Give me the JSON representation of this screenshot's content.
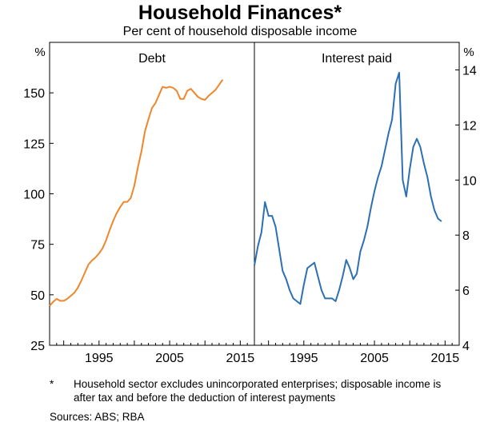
{
  "title": "Household Finances*",
  "subtitle": "Per cent of household disposable income",
  "footnote_marker": "*",
  "footnote": "Household sector excludes unincorporated enterprises; disposable income is after tax and before the deduction of interest payments",
  "sources": "Sources:  ABS; RBA",
  "colors": {
    "debt": "#f0862a",
    "interest": "#2c6fb3",
    "axis": "#000000"
  },
  "chart_data": [
    {
      "type": "line",
      "panel_title": "Debt",
      "ylabel": "%",
      "y_axis_side": "left",
      "ylim": [
        25,
        175
      ],
      "yticks": [
        25,
        50,
        75,
        100,
        125,
        150
      ],
      "xlim": [
        1988,
        2017
      ],
      "xticks": [
        1995,
        2005,
        2015
      ],
      "grid": false,
      "series": [
        {
          "color": "#f0862a",
          "x": [
            1988.0,
            1988.5,
            1989.0,
            1989.5,
            1990.0,
            1990.5,
            1991.0,
            1991.5,
            1992.0,
            1992.5,
            1993.0,
            1993.5,
            1994.0,
            1994.5,
            1995.0,
            1995.5,
            1996.0,
            1996.5,
            1997.0,
            1997.5,
            1998.0,
            1998.5,
            1999.0,
            1999.5,
            2000.0,
            2000.5,
            2001.0,
            2001.5,
            2002.0,
            2002.5,
            2003.0,
            2003.5,
            2004.0,
            2004.5,
            2005.0,
            2005.5,
            2006.0,
            2006.5,
            2007.0,
            2007.5,
            2008.0,
            2008.5,
            2009.0,
            2009.5,
            2010.0,
            2010.5,
            2011.0,
            2011.5,
            2012.0,
            2012.5,
            2013.0,
            2013.5,
            2014.0,
            2014.5
          ],
          "values": [
            44.5,
            46.5,
            48,
            47,
            47,
            48,
            49.5,
            51,
            53.5,
            57,
            61,
            65,
            67,
            68.5,
            70.5,
            73,
            77,
            82,
            86.5,
            90.5,
            93.5,
            96,
            96,
            98,
            104,
            113,
            121,
            131,
            137,
            142.5,
            145,
            149,
            153,
            152.5,
            153,
            152.5,
            151,
            147,
            147,
            151,
            152,
            150,
            148,
            147,
            146.5,
            148.5,
            150,
            151.5,
            154,
            156.5,
            null,
            null,
            null,
            null
          ]
        }
      ]
    },
    {
      "type": "line",
      "panel_title": "Interest paid",
      "ylabel": "%",
      "y_axis_side": "right",
      "ylim": [
        4,
        15
      ],
      "yticks": [
        4,
        6,
        8,
        10,
        12,
        14
      ],
      "xlim": [
        1988,
        2017
      ],
      "xticks": [
        1995,
        2005,
        2015
      ],
      "grid": false,
      "series": [
        {
          "color": "#2c6fb3",
          "x": [
            1988.0,
            1988.5,
            1989.0,
            1989.5,
            1990.0,
            1990.5,
            1991.0,
            1991.5,
            1992.0,
            1992.5,
            1993.0,
            1993.5,
            1994.0,
            1994.5,
            1995.0,
            1995.5,
            1996.0,
            1996.5,
            1997.0,
            1997.5,
            1998.0,
            1998.5,
            1999.0,
            1999.5,
            2000.0,
            2000.5,
            2001.0,
            2001.5,
            2002.0,
            2002.5,
            2003.0,
            2003.5,
            2004.0,
            2004.5,
            2005.0,
            2005.5,
            2006.0,
            2006.5,
            2007.0,
            2007.5,
            2008.0,
            2008.5,
            2009.0,
            2009.5,
            2010.0,
            2010.5,
            2011.0,
            2011.5,
            2012.0,
            2012.5,
            2013.0,
            2013.5,
            2014.0,
            2014.5
          ],
          "values": [
            6.9,
            7.6,
            8.1,
            9.2,
            8.7,
            8.7,
            8.3,
            7.5,
            6.7,
            6.4,
            6.0,
            5.7,
            5.6,
            5.5,
            6.2,
            6.8,
            6.9,
            7.0,
            6.5,
            6.0,
            5.7,
            5.7,
            5.7,
            5.6,
            6.0,
            6.5,
            7.1,
            6.8,
            6.4,
            6.6,
            7.4,
            7.8,
            8.3,
            9.0,
            9.6,
            10.1,
            10.5,
            11.1,
            11.7,
            12.2,
            13.5,
            13.9,
            10.0,
            9.4,
            10.4,
            11.2,
            11.5,
            11.2,
            10.6,
            10.1,
            9.4,
            8.9,
            8.6,
            8.5
          ]
        }
      ]
    }
  ]
}
